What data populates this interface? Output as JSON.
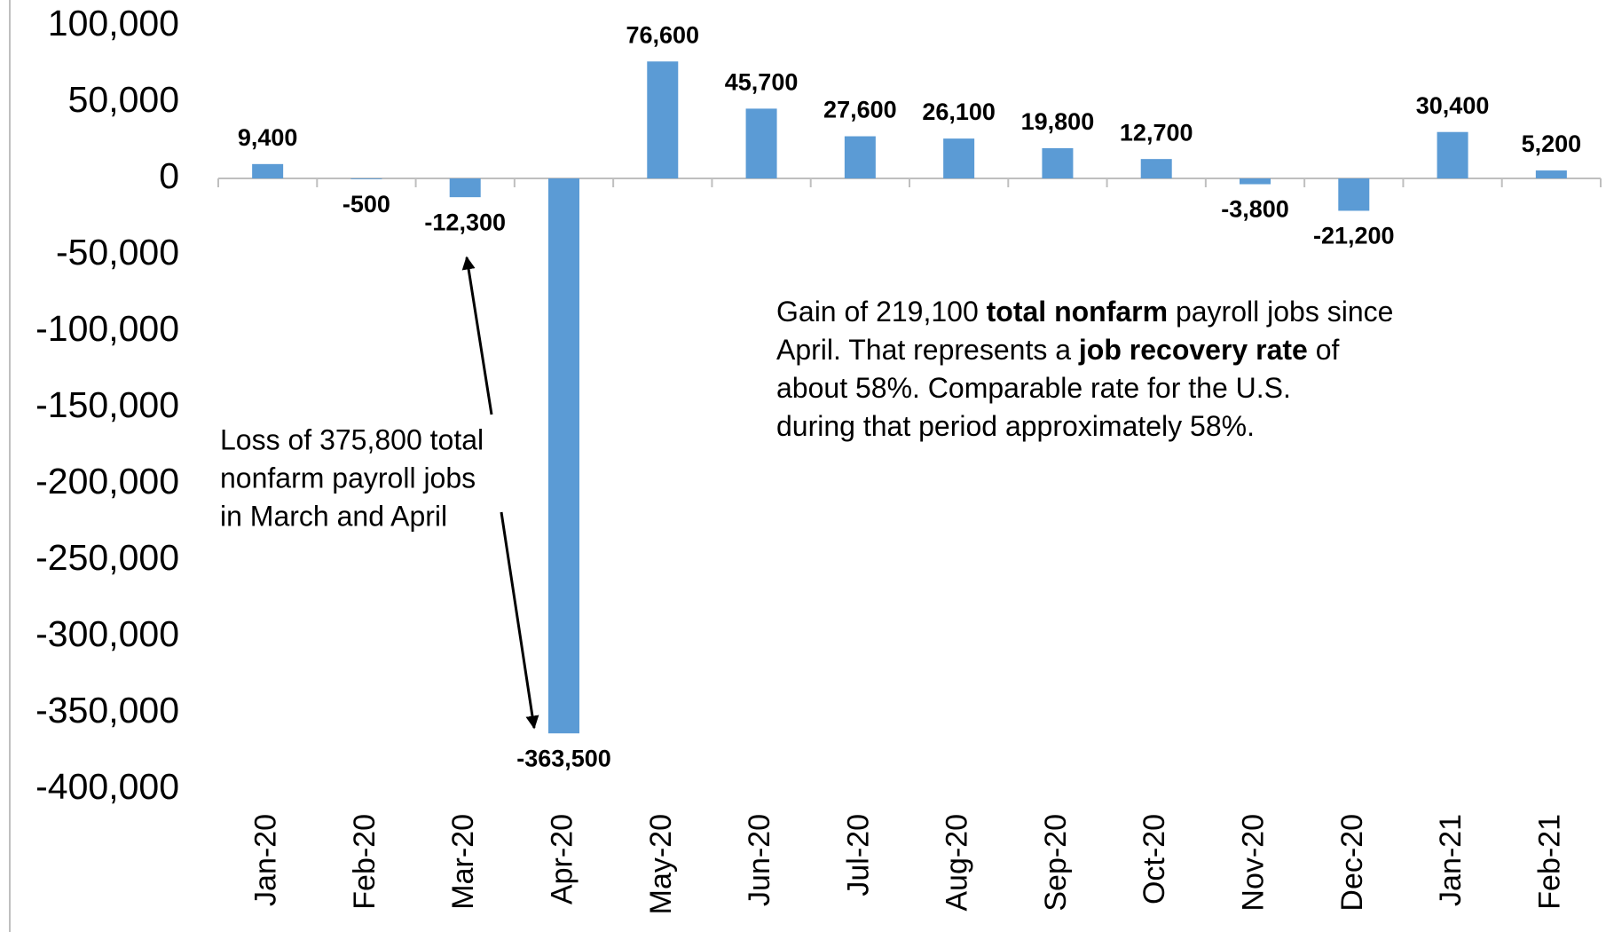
{
  "chart_data": {
    "type": "bar",
    "categories": [
      "Jan-20",
      "Feb-20",
      "Mar-20",
      "Apr-20",
      "May-20",
      "Jun-20",
      "Jul-20",
      "Aug-20",
      "Sep-20",
      "Oct-20",
      "Nov-20",
      "Dec-20",
      "Jan-21",
      "Feb-21"
    ],
    "values": [
      9400,
      -500,
      -12300,
      -363500,
      76600,
      45700,
      27600,
      26100,
      19800,
      12700,
      -3800,
      -21200,
      30400,
      5200
    ],
    "value_labels": [
      "9,400",
      "-500",
      "-12,300",
      "-363,500",
      "76,600",
      "45,700",
      "27,600",
      "26,100",
      "19,800",
      "12,700",
      "-3,800",
      "-21,200",
      "30,400",
      "5,200"
    ],
    "color": "#5b9bd5",
    "ylim": [
      -400000,
      100000
    ],
    "yticks": [
      {
        "value": -400000,
        "label": "-400,000"
      },
      {
        "value": -350000,
        "label": "-350,000"
      },
      {
        "value": -300000,
        "label": "-300,000"
      },
      {
        "value": -250000,
        "label": "-250,000"
      },
      {
        "value": -200000,
        "label": "-200,000"
      },
      {
        "value": -150000,
        "label": "-150,000"
      },
      {
        "value": -100000,
        "label": "-100,000"
      },
      {
        "value": -50000,
        "label": "-50,000"
      },
      0,
      {
        "value": 50000,
        "label": "50,000"
      },
      {
        "value": 100000,
        "label": "100,000"
      }
    ],
    "grid": false,
    "annotations": [
      {
        "lines": [
          "Loss of 375,800 total",
          "nonfarm payroll jobs",
          "in March and April"
        ]
      },
      {
        "lines": [
          [
            {
              "text": "Gain of 219,100 ",
              "bold": false
            },
            {
              "text": "total nonfarm",
              "bold": true
            },
            {
              "text": " payroll jobs since",
              "bold": false
            }
          ],
          [
            {
              "text": "April. That represents a ",
              "bold": false
            },
            {
              "text": "job recovery rate",
              "bold": true
            },
            {
              "text": " of",
              "bold": false
            }
          ],
          [
            {
              "text": "about 58%. Comparable rate for the U.S.",
              "bold": false
            }
          ],
          [
            {
              "text": "during that period approximately 58%.",
              "bold": false
            }
          ]
        ]
      }
    ]
  }
}
